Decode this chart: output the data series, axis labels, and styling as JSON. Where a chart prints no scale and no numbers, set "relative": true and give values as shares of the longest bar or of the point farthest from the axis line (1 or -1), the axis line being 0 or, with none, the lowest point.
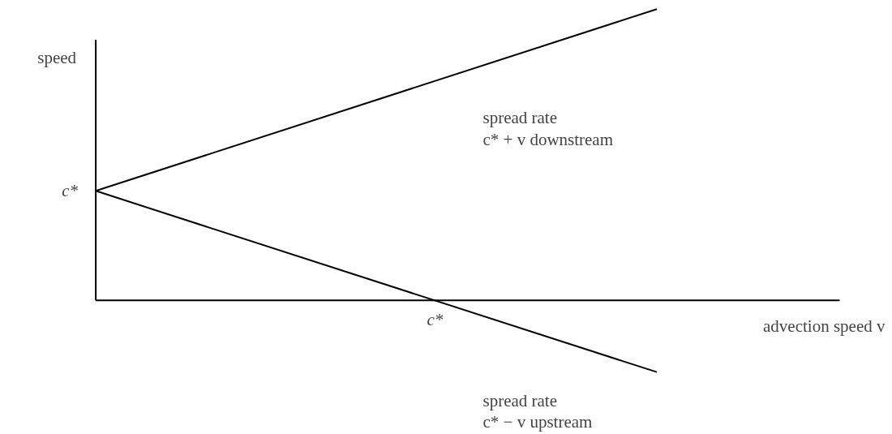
{
  "chart_data": {
    "type": "line",
    "relative": true,
    "xlabel": "advection speed v",
    "ylabel": "speed",
    "categories": [
      null,
      null
    ],
    "line_style": "solid",
    "marker": "none",
    "series": [
      {
        "color": "#000000",
        "values": [
          0.376,
          1
        ]
      },
      {
        "color": "#000000",
        "values": [
          0.376,
          -0.246
        ]
      }
    ],
    "annotations": [
      "c*",
      "c*",
      "spread rate\nc* + v downstream",
      "spread rate\nc* − v upstream"
    ]
  }
}
